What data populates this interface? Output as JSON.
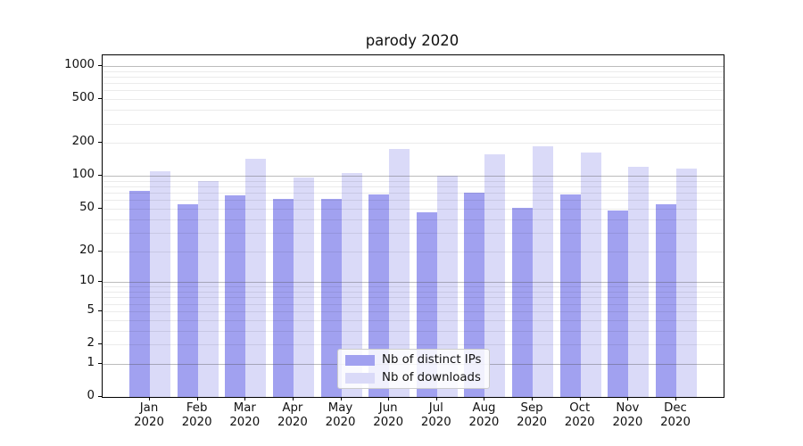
{
  "chart_data": {
    "type": "bar",
    "title": "parody 2020",
    "categories": [
      "Jan",
      "Feb",
      "Mar",
      "Apr",
      "May",
      "Jun",
      "Jul",
      "Aug",
      "Sep",
      "Oct",
      "Nov",
      "Dec"
    ],
    "category_subline": "2020",
    "series": [
      {
        "name": "Nb of distinct IPs",
        "color": "#a1a1f0",
        "values": [
          73,
          55,
          66,
          62,
          61,
          68,
          46,
          70,
          51,
          67,
          48,
          55
        ]
      },
      {
        "name": "Nb of downloads",
        "color": "#dadaf8",
        "values": [
          110,
          90,
          143,
          97,
          107,
          175,
          100,
          157,
          185,
          162,
          120,
          117
        ]
      }
    ],
    "yscale": "symlog",
    "yticks": [
      0,
      1,
      2,
      5,
      10,
      20,
      50,
      100,
      200,
      500,
      1000
    ],
    "ylim": [
      0,
      1250
    ],
    "xlabel": "",
    "ylabel": "",
    "grid": {
      "major_at": [
        1,
        10,
        100,
        1000
      ],
      "minor_between_decades": true,
      "grid_above_bars": true
    },
    "legend": {
      "position": "lower center"
    }
  },
  "colors": {
    "axis_frame": "#000000",
    "major_grid": "#b3b3b3",
    "minor_grid": "#ebebeb",
    "background": "#ffffff",
    "text": "#111111",
    "legend_border": "#cccccc"
  }
}
